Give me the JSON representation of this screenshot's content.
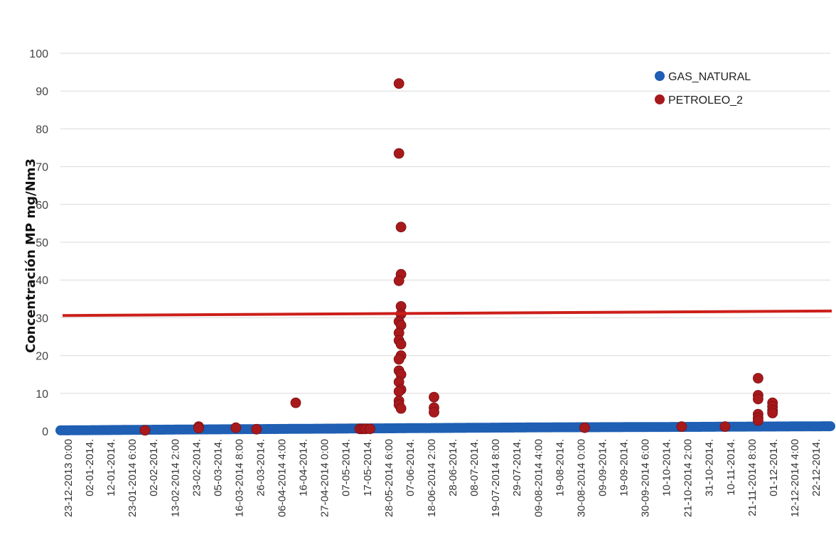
{
  "chart_data": {
    "type": "scatter",
    "title": "",
    "xlabel": "",
    "ylabel": "Concentración MP mg/Nm3",
    "ylim": [
      0,
      100
    ],
    "y_ticks": [
      0,
      10,
      20,
      30,
      40,
      50,
      60,
      70,
      80,
      90,
      100
    ],
    "grid": true,
    "legend_position": "top-right",
    "x_tick_labels": [
      "23-12-2013 0:00",
      "02-01-2014.",
      "12-01-2014.",
      "23-01-2014 6:00",
      "02-02-2014.",
      "13-02-2014 2:00",
      "23-02-2014.",
      "05-03-2014.",
      "16-03-2014 8:00",
      "26-03-2014.",
      "06-04-2014 4:00",
      "16-04-2014.",
      "27-04-2014 0:00",
      "07-05-2014.",
      "17-05-2014.",
      "28-05-2014 6:00",
      "07-06-2014.",
      "18-06-2014 2:00",
      "28-06-2014.",
      "08-07-2014.",
      "19-07-2014 8:00",
      "29-07-2014.",
      "09-08-2014 4:00",
      "19-08-2014.",
      "30-08-2014 0:00",
      "09-09-2014.",
      "19-09-2014.",
      "30-09-2014 6:00",
      "10-10-2014.",
      "21-10-2014 2:00",
      "31-10-2014.",
      "10-11-2014.",
      "21-11-2014 8:00",
      "01-12-2014.",
      "12-12-2014 4:00",
      "22-12-2014."
    ],
    "x_range": [
      "2013-12-23",
      "2014-12-31"
    ],
    "series": [
      {
        "name": "GAS_NATURAL",
        "color": "#1f5fb4",
        "points": [
          [
            "2013-12-23",
            0.2
          ],
          [
            "2014-02-15",
            0.4
          ],
          [
            "2014-04-15",
            0.6
          ],
          [
            "2014-06-15",
            0.8
          ],
          [
            "2014-08-15",
            1.0
          ],
          [
            "2014-10-15",
            1.1
          ],
          [
            "2014-12-31",
            1.3
          ]
        ]
      },
      {
        "name": "PETROLEO_2",
        "color": "#a8191c",
        "points": [
          [
            "2014-02-02",
            0.2
          ],
          [
            "2014-02-28",
            1.2
          ],
          [
            "2014-02-28",
            0.8
          ],
          [
            "2014-03-18",
            0.9
          ],
          [
            "2014-03-28",
            0.5
          ],
          [
            "2014-04-16",
            7.5
          ],
          [
            "2014-05-17",
            0.6
          ],
          [
            "2014-05-18",
            0.6
          ],
          [
            "2014-05-19",
            0.6
          ],
          [
            "2014-05-20",
            0.6
          ],
          [
            "2014-05-22",
            0.6
          ],
          [
            "2014-06-05",
            92
          ],
          [
            "2014-06-05",
            73.5
          ],
          [
            "2014-06-06",
            54
          ],
          [
            "2014-06-06",
            41.5
          ],
          [
            "2014-06-05",
            39.8
          ],
          [
            "2014-06-06",
            33
          ],
          [
            "2014-06-06",
            31
          ],
          [
            "2014-06-05",
            29
          ],
          [
            "2014-06-06",
            28
          ],
          [
            "2014-06-05",
            26
          ],
          [
            "2014-06-05",
            24
          ],
          [
            "2014-06-06",
            23
          ],
          [
            "2014-06-06",
            20
          ],
          [
            "2014-06-05",
            19
          ],
          [
            "2014-06-05",
            16
          ],
          [
            "2014-06-06",
            15
          ],
          [
            "2014-06-05",
            13
          ],
          [
            "2014-06-06",
            11
          ],
          [
            "2014-06-05",
            10.5
          ],
          [
            "2014-06-05",
            8
          ],
          [
            "2014-06-05",
            7
          ],
          [
            "2014-06-06",
            6
          ],
          [
            "2014-06-22",
            9
          ],
          [
            "2014-06-22",
            6.2
          ],
          [
            "2014-06-22",
            5
          ],
          [
            "2014-09-03",
            0.9
          ],
          [
            "2014-10-20",
            1.2
          ],
          [
            "2014-11-10",
            1.2
          ],
          [
            "2014-11-26",
            14
          ],
          [
            "2014-11-26",
            9.5
          ],
          [
            "2014-11-26",
            8.5
          ],
          [
            "2014-11-26",
            4.5
          ],
          [
            "2014-11-26",
            3.5
          ],
          [
            "2014-11-26",
            2.8
          ],
          [
            "2014-12-03",
            7.5
          ],
          [
            "2014-12-03",
            6.5
          ],
          [
            "2014-12-03",
            5.5
          ],
          [
            "2014-12-03",
            4.8
          ]
        ]
      }
    ],
    "reference_line": {
      "color": "#cc1f1a",
      "start": [
        "2013-12-23",
        30.6
      ],
      "end": [
        "2014-12-31",
        31.8
      ]
    }
  }
}
